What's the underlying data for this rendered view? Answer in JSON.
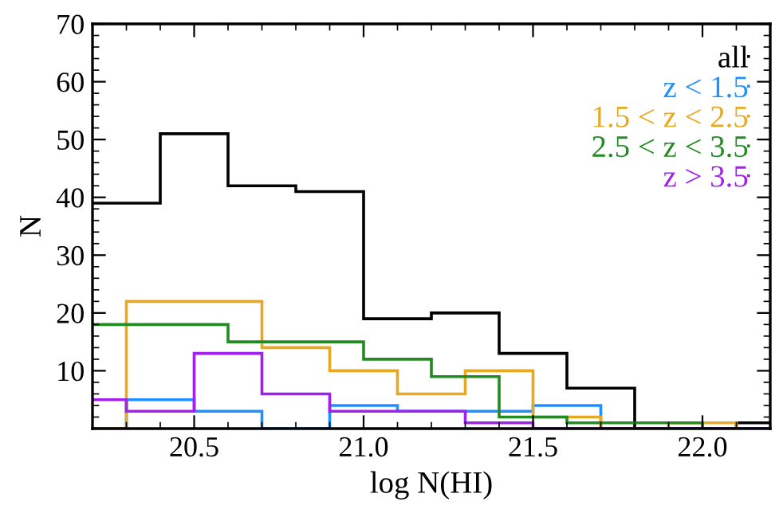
{
  "chart_data": {
    "type": "histogram",
    "xlabel": "log N(HI)",
    "ylabel": "N",
    "xlim": [
      20.2,
      22.2
    ],
    "ylim": [
      0,
      70
    ],
    "xticks": [
      {
        "value": 20.5,
        "label": "20.5"
      },
      {
        "value": 21.0,
        "label": "21.0"
      },
      {
        "value": 21.5,
        "label": "21.5"
      },
      {
        "value": 22.0,
        "label": "22.0"
      }
    ],
    "yticks": [
      10,
      20,
      30,
      40,
      50,
      60,
      70
    ],
    "legend": "top right",
    "bins": [
      20.2,
      20.3,
      20.4,
      20.5,
      20.6,
      20.7,
      20.8,
      20.9,
      21.0,
      21.1,
      21.2,
      21.3,
      21.4,
      21.5,
      21.6,
      21.7,
      21.8,
      21.9,
      22.0,
      22.1,
      22.2
    ],
    "series": [
      {
        "name": "all",
        "color": "#000000",
        "values": [
          39,
          39,
          51,
          51,
          42,
          42,
          41,
          41,
          19,
          19,
          20,
          20,
          13,
          13,
          7,
          7,
          0,
          0,
          0,
          1
        ]
      },
      {
        "name": "z < 1.5",
        "color": "#1e90ff",
        "values": [
          0,
          5,
          5,
          3,
          3,
          0,
          0,
          4,
          4,
          3,
          3,
          3,
          3,
          4,
          4,
          0,
          0,
          0,
          0,
          0
        ]
      },
      {
        "name": "1.5 < z < 2.5",
        "color": "#e8a820",
        "values": [
          0,
          22,
          22,
          22,
          22,
          14,
          14,
          10,
          10,
          6,
          6,
          10,
          10,
          2,
          2,
          0,
          0,
          1,
          1,
          0
        ]
      },
      {
        "name": "2.5 < z < 3.5",
        "color": "#228b22",
        "values": [
          18,
          18,
          18,
          18,
          15,
          15,
          15,
          15,
          12,
          12,
          9,
          9,
          2,
          2,
          1,
          1,
          1,
          1,
          0,
          0
        ]
      },
      {
        "name": "z > 3.5",
        "color": "#a020f0",
        "values": [
          5,
          3,
          3,
          13,
          13,
          6,
          6,
          3,
          3,
          3,
          3,
          1,
          1,
          0,
          0,
          0,
          0,
          0,
          0,
          0
        ]
      }
    ]
  }
}
